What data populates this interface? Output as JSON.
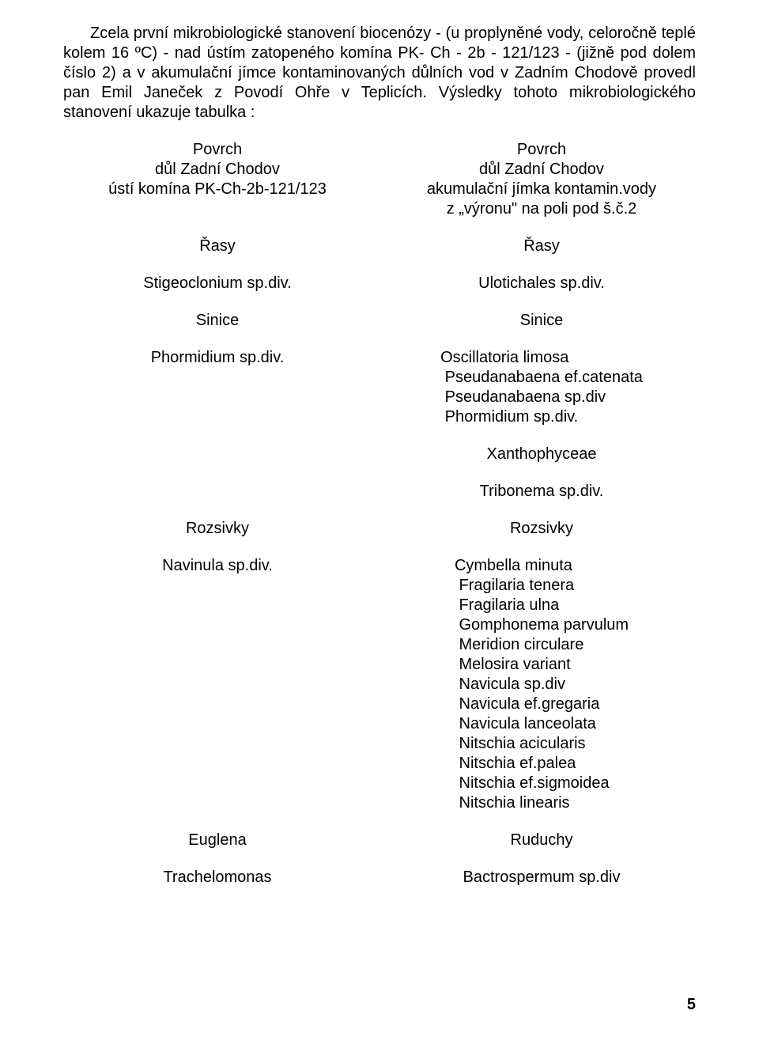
{
  "paragraph": "Zcela první mikrobiologické stanovení biocenózy - (u proplyněné vody, celoročně teplé kolem 16 ºC) - nad ústím zatopeného komína PK- Ch - 2b - 121/123 - (jižně pod dolem číslo 2) a v akumulační jímce kontaminovaných důlních vod v Zadním Chodově provedl pan Emil Janeček z Povodí Ohře v Teplicích. Výsledky tohoto mikrobiologického stanovení ukazuje tabulka :",
  "left": {
    "header": {
      "l1": "Povrch",
      "l2": "důl Zadní Chodov",
      "l3": "ústí komína PK-Ch-2b-121/123"
    },
    "rasy_h": "Řasy",
    "rasy_item": "Stigeoclonium sp.div.",
    "sinice_h": "Sinice",
    "sinice_item": "Phormidium sp.div.",
    "rozsivky_h": "Rozsivky",
    "rozsivky_item": "Navinula sp.div.",
    "euglena_h": "Euglena",
    "trach_h": "Trachelomonas"
  },
  "right": {
    "header": {
      "l1": "Povrch",
      "l2": "důl Zadní Chodov",
      "l3": "akumulační jímka kontamin.vody",
      "l4": "z „výronu\" na poli pod š.č.2"
    },
    "rasy_h": "Řasy",
    "rasy_item": "Ulotichales sp.div.",
    "sinice_h": "Sinice",
    "sinice_items": {
      "a": "Oscillatoria limosa",
      "b": " Pseudanabaena ef.catenata",
      "c": " Pseudanabaena sp.div",
      "d": " Phormidium sp.div."
    },
    "xanth_h": "Xanthophyceae",
    "xanth_item": "Tribonema sp.div.",
    "rozsivky_h": "Rozsivky",
    "rozsivky_items": {
      "a": "Cymbella minuta",
      "b": " Fragilaria tenera",
      "c": " Fragilaria ulna",
      "d": " Gomphonema parvulum",
      "e": " Meridion circulare",
      "f": " Melosira variant",
      "g": " Navicula sp.div",
      "h": " Navicula ef.gregaria",
      "i": " Navicula lanceolata",
      "j": " Nitschia acicularis",
      "k": " Nitschia ef.palea",
      "l": " Nitschia ef.sigmoidea",
      "m": " Nitschia linearis"
    },
    "ruduchy_h": "Ruduchy",
    "bactr_item": "Bactrospermum sp.div"
  },
  "page_number": "5"
}
